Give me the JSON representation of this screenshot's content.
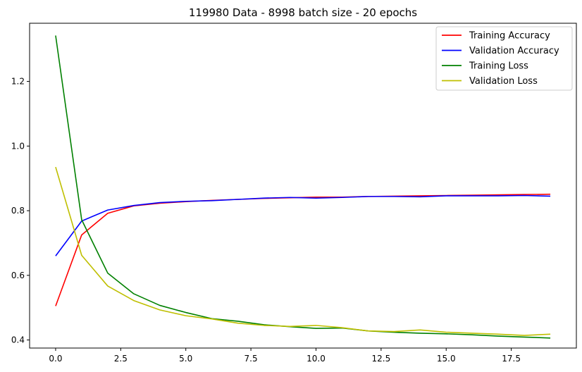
{
  "chart_data": {
    "type": "line",
    "title": "119980 Data - 8998 batch size - 20 epochs",
    "xlabel": "",
    "ylabel": "",
    "x": [
      0,
      1,
      2,
      3,
      4,
      5,
      6,
      7,
      8,
      9,
      10,
      11,
      12,
      13,
      14,
      15,
      16,
      17,
      18,
      19
    ],
    "xlim": [
      -1,
      20
    ],
    "ylim": [
      0.375,
      1.38
    ],
    "xticks": [
      0.0,
      2.5,
      5.0,
      7.5,
      10.0,
      12.5,
      15.0,
      17.5
    ],
    "xtick_labels": [
      "0.0",
      "2.5",
      "5.0",
      "7.5",
      "10.0",
      "12.5",
      "15.0",
      "17.5"
    ],
    "yticks": [
      0.4,
      0.6,
      0.8,
      1.0,
      1.2
    ],
    "ytick_labels": [
      "0.4",
      "0.6",
      "0.8",
      "1.0",
      "1.2"
    ],
    "grid": false,
    "legend_position": "top-right",
    "series": [
      {
        "name": "Training Accuracy",
        "color": "#ff0000",
        "values": [
          0.505,
          0.725,
          0.792,
          0.815,
          0.823,
          0.828,
          0.832,
          0.835,
          0.838,
          0.84,
          0.842,
          0.842,
          0.844,
          0.845,
          0.846,
          0.847,
          0.848,
          0.849,
          0.85,
          0.851
        ]
      },
      {
        "name": "Validation Accuracy",
        "color": "#0000ff",
        "values": [
          0.66,
          0.768,
          0.802,
          0.816,
          0.825,
          0.829,
          0.831,
          0.835,
          0.839,
          0.841,
          0.839,
          0.841,
          0.844,
          0.844,
          0.843,
          0.846,
          0.846,
          0.846,
          0.847,
          0.845
        ]
      },
      {
        "name": "Training Loss",
        "color": "#008000",
        "values": [
          1.342,
          0.772,
          0.607,
          0.543,
          0.507,
          0.485,
          0.466,
          0.458,
          0.447,
          0.441,
          0.436,
          0.437,
          0.428,
          0.424,
          0.421,
          0.419,
          0.416,
          0.412,
          0.409,
          0.406
        ]
      },
      {
        "name": "Validation Loss",
        "color": "#bfbf00",
        "values": [
          0.935,
          0.662,
          0.567,
          0.522,
          0.493,
          0.475,
          0.465,
          0.452,
          0.445,
          0.442,
          0.445,
          0.438,
          0.428,
          0.426,
          0.431,
          0.424,
          0.421,
          0.418,
          0.414,
          0.418
        ]
      }
    ]
  }
}
